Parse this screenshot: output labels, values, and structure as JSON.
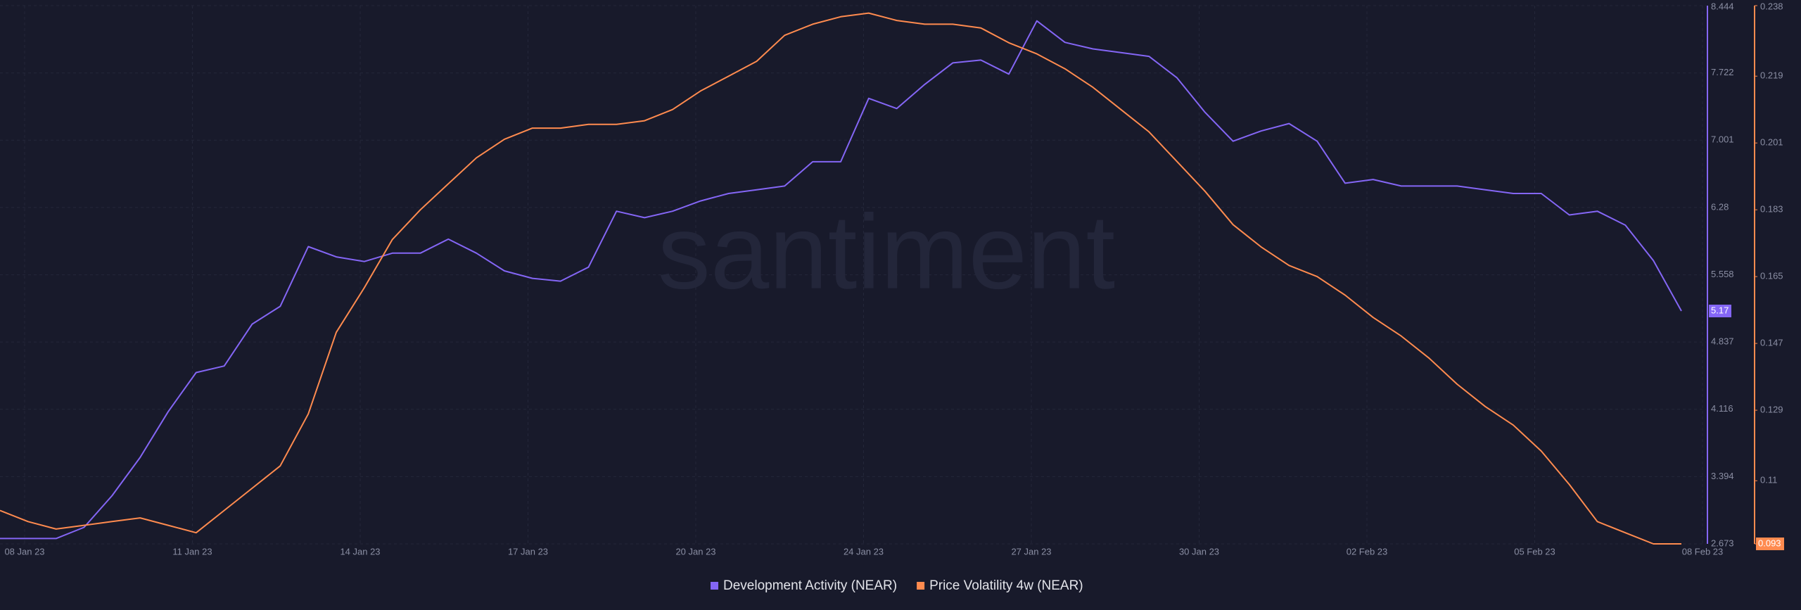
{
  "chart_data": {
    "type": "line",
    "watermark": "santiment",
    "xticks": [
      "08 Jan 23",
      "11 Jan 23",
      "14 Jan 23",
      "17 Jan 23",
      "20 Jan 23",
      "24 Jan 23",
      "27 Jan 23",
      "30 Jan 23",
      "02 Feb 23",
      "05 Feb 23",
      "08 Feb 23"
    ],
    "ylim": [
      2.673,
      8.444
    ],
    "yticks": [
      2.673,
      3.394,
      4.116,
      4.837,
      5.558,
      6.28,
      7.001,
      7.722,
      8.444
    ],
    "y2lim": [
      0.093,
      0.238
    ],
    "y2ticks": [
      0.093,
      0.11,
      0.129,
      0.147,
      0.165,
      0.183,
      0.201,
      0.219,
      0.238
    ],
    "grid": true,
    "series": [
      {
        "name": "Development Activity (NEAR)",
        "color": "#8466f5",
        "values": [
          2.73,
          2.73,
          2.73,
          2.85,
          3.19,
          3.6,
          4.09,
          4.51,
          4.58,
          5.03,
          5.22,
          5.86,
          5.75,
          5.7,
          5.79,
          5.79,
          5.94,
          5.79,
          5.6,
          5.52,
          5.49,
          5.64,
          6.24,
          6.17,
          6.24,
          6.35,
          6.43,
          6.47,
          6.51,
          6.77,
          6.77,
          7.45,
          7.34,
          7.6,
          7.83,
          7.86,
          7.71,
          8.28,
          8.05,
          7.98,
          7.94,
          7.9,
          7.67,
          7.3,
          6.99,
          7.1,
          7.18,
          6.99,
          6.54,
          6.58,
          6.51,
          6.51,
          6.51,
          6.47,
          6.43,
          6.43,
          6.2,
          6.24,
          6.09,
          5.71,
          5.17
        ]
      },
      {
        "name": "Price Volatility 4w (NEAR)",
        "color": "#ff8b4f",
        "axis": "y2",
        "values": [
          0.102,
          0.099,
          0.097,
          0.098,
          0.099,
          0.1,
          0.098,
          0.096,
          0.102,
          0.108,
          0.114,
          0.128,
          0.15,
          0.162,
          0.175,
          0.183,
          0.19,
          0.197,
          0.202,
          0.205,
          0.205,
          0.206,
          0.206,
          0.207,
          0.21,
          0.215,
          0.219,
          0.223,
          0.23,
          0.233,
          0.235,
          0.236,
          0.234,
          0.233,
          0.233,
          0.232,
          0.228,
          0.225,
          0.221,
          0.216,
          0.21,
          0.204,
          0.196,
          0.188,
          0.179,
          0.173,
          0.168,
          0.165,
          0.16,
          0.154,
          0.149,
          0.143,
          0.136,
          0.13,
          0.125,
          0.118,
          0.109,
          0.099,
          0.096,
          0.093,
          0.093
        ]
      }
    ]
  }
}
